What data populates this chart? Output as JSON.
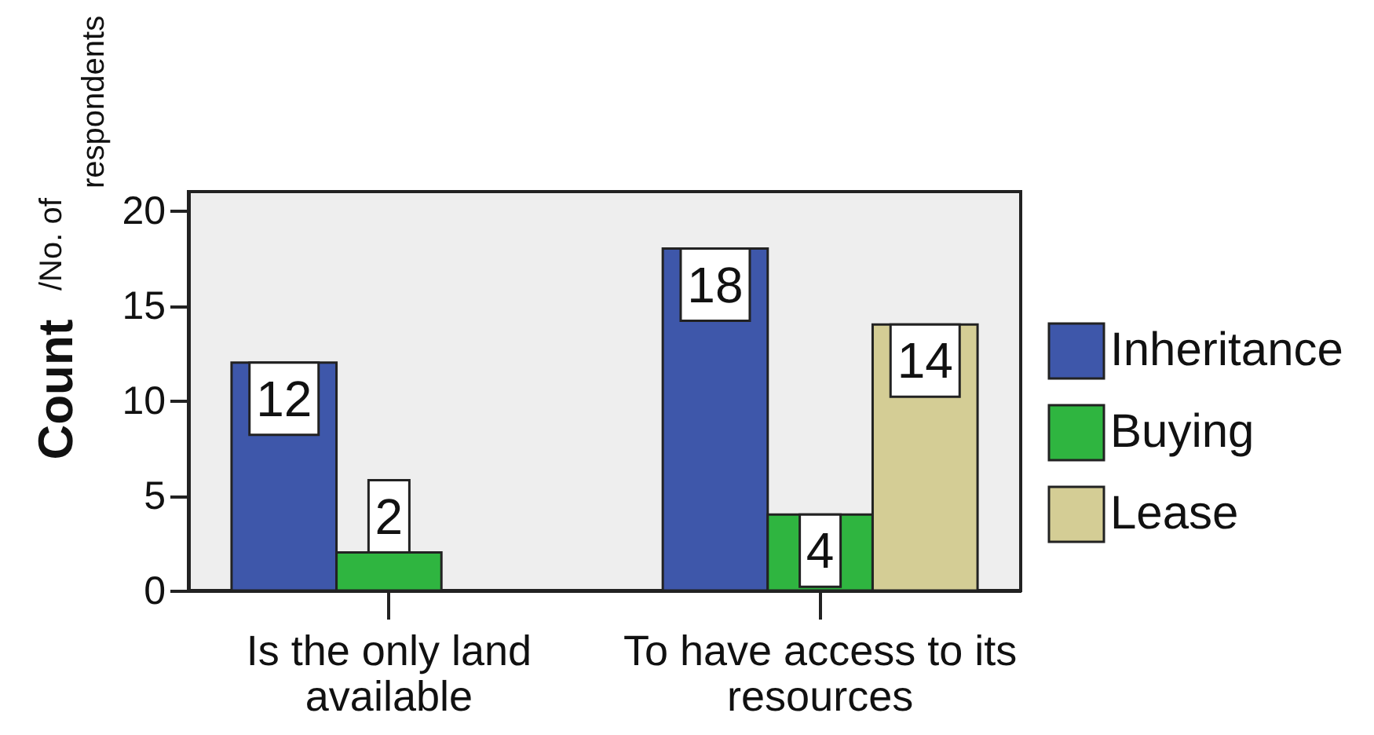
{
  "chart_data": {
    "type": "bar",
    "ylabel": "Count /No. of respondents",
    "categories": [
      "Is the only land available",
      "To have access to its resources"
    ],
    "series": [
      {
        "name": "Inheritance",
        "color": "#3e57aa",
        "values": [
          12,
          18
        ]
      },
      {
        "name": "Buying",
        "color": "#2fb540",
        "values": [
          2,
          4
        ]
      },
      {
        "name": "Lease",
        "color": "#d4cd95",
        "values": [
          null,
          14
        ]
      }
    ],
    "ylim": [
      0,
      21
    ],
    "yticks": [
      0,
      5,
      10,
      15,
      20
    ],
    "grid": false,
    "legend": "right",
    "data_labels": true
  }
}
